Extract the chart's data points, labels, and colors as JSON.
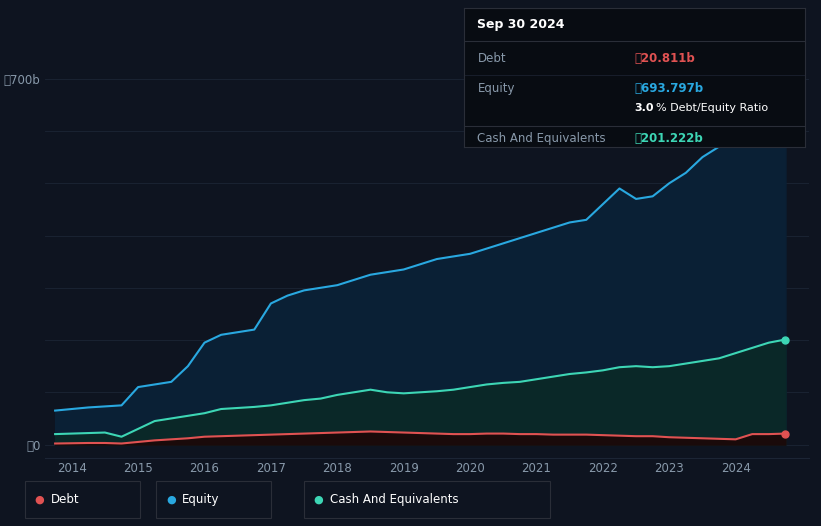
{
  "background_color": "#0e1420",
  "plot_bg_color": "#0e1420",
  "grid_color": "#1c2535",
  "line_colors": {
    "debt": "#e05252",
    "equity": "#29a8e0",
    "cash": "#3dd6b5"
  },
  "fill_equity_color": "#0a2035",
  "fill_cash_color": "#0a2828",
  "fill_debt_color": "#1a0a0a",
  "tooltip_bg": "#080c12",
  "tooltip_border": "#2a2e38",
  "tooltip_title": "Sep 30 2024",
  "tooltip_debt_label": "Debt",
  "tooltip_debt_value": "₷20.811b",
  "tooltip_equity_label": "Equity",
  "tooltip_equity_value": "₷693.797b",
  "tooltip_ratio": "3.0% Debt/Equity Ratio",
  "tooltip_cash_label": "Cash And Equivalents",
  "tooltip_cash_value": "₷201.222b",
  "legend_items": [
    "Debt",
    "Equity",
    "Cash And Equivalents"
  ],
  "legend_colors": [
    "#e05252",
    "#29a8e0",
    "#3dd6b5"
  ],
  "ylabel_zero": "₷0",
  "ylabel_top": "₷700b",
  "years": [
    2013.75,
    2014.0,
    2014.25,
    2014.5,
    2014.75,
    2015.0,
    2015.25,
    2015.5,
    2015.75,
    2016.0,
    2016.25,
    2016.5,
    2016.75,
    2017.0,
    2017.25,
    2017.5,
    2017.75,
    2018.0,
    2018.25,
    2018.5,
    2018.75,
    2019.0,
    2019.25,
    2019.5,
    2019.75,
    2020.0,
    2020.25,
    2020.5,
    2020.75,
    2021.0,
    2021.25,
    2021.5,
    2021.75,
    2022.0,
    2022.25,
    2022.5,
    2022.75,
    2023.0,
    2023.25,
    2023.5,
    2023.75,
    2024.0,
    2024.25,
    2024.5,
    2024.75
  ],
  "equity_values": [
    65,
    68,
    71,
    73,
    75,
    110,
    115,
    120,
    150,
    195,
    210,
    215,
    220,
    270,
    285,
    295,
    300,
    305,
    315,
    325,
    330,
    335,
    345,
    355,
    360,
    365,
    375,
    385,
    395,
    405,
    415,
    425,
    430,
    460,
    490,
    470,
    475,
    500,
    520,
    550,
    570,
    590,
    620,
    660,
    693
  ],
  "cash_values": [
    20,
    21,
    22,
    23,
    15,
    30,
    45,
    50,
    55,
    60,
    68,
    70,
    72,
    75,
    80,
    85,
    88,
    95,
    100,
    105,
    100,
    98,
    100,
    102,
    105,
    110,
    115,
    118,
    120,
    125,
    130,
    135,
    138,
    142,
    148,
    150,
    148,
    150,
    155,
    160,
    165,
    175,
    185,
    195,
    201
  ],
  "debt_values": [
    2,
    2.5,
    3,
    3,
    2,
    5,
    8,
    10,
    12,
    15,
    16,
    17,
    18,
    19,
    20,
    21,
    22,
    23,
    24,
    25,
    24,
    23,
    22,
    21,
    20,
    20,
    21,
    21,
    20,
    20,
    19,
    19,
    19,
    18,
    17,
    16,
    16,
    14,
    13,
    12,
    11,
    10,
    20,
    20,
    21
  ],
  "xtick_positions": [
    2014,
    2015,
    2016,
    2017,
    2018,
    2019,
    2020,
    2021,
    2022,
    2023,
    2024
  ],
  "xlim": [
    2013.6,
    2025.1
  ],
  "ylim": [
    -25,
    750
  ]
}
